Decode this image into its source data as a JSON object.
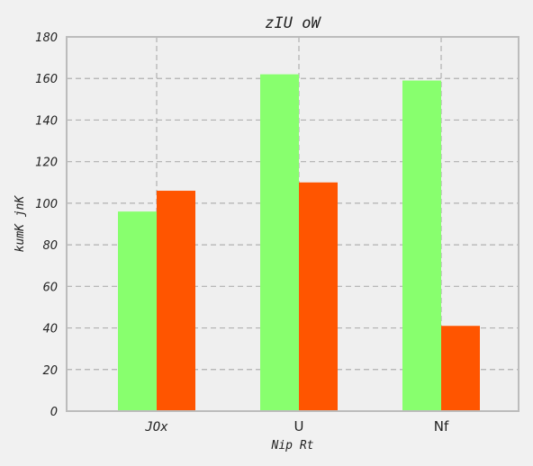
{
  "chart_data": {
    "type": "bar",
    "title": "zIU oW",
    "xlabel": "Nip Rt",
    "ylabel": "kumK jnK",
    "categories": [
      "JOx",
      "U",
      "Nf"
    ],
    "series": [
      {
        "values": [
          96,
          162,
          159
        ],
        "color": "#88ff6e"
      },
      {
        "values": [
          106,
          110,
          41
        ],
        "color": "#ff5500"
      }
    ],
    "ylim": [
      0,
      180
    ],
    "yticks": [
      0,
      20,
      40,
      60,
      80,
      100,
      120,
      140,
      160,
      180
    ],
    "grid": true,
    "legend": "none"
  }
}
